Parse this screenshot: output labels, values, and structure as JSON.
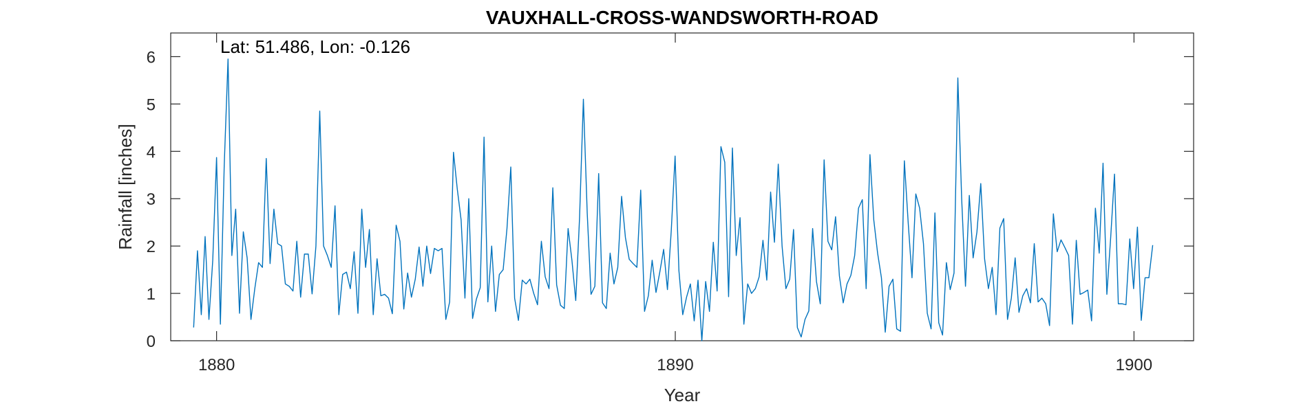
{
  "chart_data": {
    "type": "line",
    "title": "VAUXHALL-CROSS-WANDSWORTH-ROAD",
    "annotation": "Lat: 51.486, Lon: -0.126",
    "xlabel": "Year",
    "ylabel": "Rainfall [inches]",
    "xlim": [
      1879,
      1901.3
    ],
    "ylim": [
      0,
      6.5
    ],
    "xticks": [
      1880,
      1890,
      1900
    ],
    "yticks": [
      0,
      1,
      2,
      3,
      4,
      5,
      6
    ],
    "grid": false,
    "line_color": "#0072BD",
    "series": [
      {
        "x_start": 1879.5,
        "x_step": 0.0833,
        "values": [
          0.28,
          1.9,
          0.55,
          2.2,
          0.45,
          1.7,
          3.87,
          0.35,
          3.7,
          5.95,
          1.8,
          2.78,
          0.58,
          2.3,
          1.75,
          0.45,
          1.1,
          1.65,
          1.55,
          3.85,
          1.63,
          2.78,
          2.05,
          2.0,
          1.2,
          1.15,
          1.05,
          2.1,
          0.92,
          1.83,
          1.83,
          0.99,
          2.0,
          4.85,
          2.0,
          1.8,
          1.55,
          2.85,
          0.55,
          1.4,
          1.45,
          1.1,
          1.88,
          0.58,
          2.78,
          1.55,
          2.35,
          0.55,
          1.73,
          0.95,
          0.98,
          0.9,
          0.57,
          2.44,
          2.1,
          0.67,
          1.43,
          0.92,
          1.3,
          1.98,
          1.15,
          2.0,
          1.42,
          1.95,
          1.9,
          1.95,
          0.45,
          0.82,
          3.98,
          3.2,
          2.55,
          0.9,
          3.0,
          0.47,
          0.88,
          1.12,
          4.3,
          0.82,
          2.0,
          0.62,
          1.4,
          1.5,
          2.37,
          3.67,
          0.9,
          0.43,
          1.28,
          1.2,
          1.3,
          1.0,
          0.76,
          2.1,
          1.35,
          1.1,
          3.23,
          1.18,
          0.75,
          0.68,
          2.37,
          1.7,
          0.85,
          2.6,
          5.1,
          2.7,
          0.98,
          1.15,
          3.53,
          0.8,
          0.68,
          1.85,
          1.2,
          1.55,
          3.05,
          2.18,
          1.72,
          1.63,
          1.55,
          3.18,
          0.62,
          0.95,
          1.7,
          1.02,
          1.45,
          1.93,
          1.08,
          2.33,
          3.9,
          1.48,
          0.55,
          0.92,
          1.2,
          0.42,
          1.28,
          0.0,
          1.25,
          0.62,
          2.08,
          1.05,
          4.1,
          3.77,
          0.93,
          4.07,
          1.8,
          2.6,
          0.35,
          1.2,
          1.0,
          1.1,
          1.35,
          2.12,
          1.28,
          3.14,
          2.08,
          3.73,
          2.0,
          1.1,
          1.3,
          2.35,
          0.28,
          0.08,
          0.45,
          0.63,
          2.37,
          1.25,
          0.78,
          3.82,
          2.1,
          1.92,
          2.62,
          1.37,
          0.8,
          1.2,
          1.38,
          1.8,
          2.8,
          2.98,
          1.1,
          3.93,
          2.55,
          1.85,
          1.33,
          0.18,
          1.15,
          1.3,
          0.25,
          0.2,
          3.8,
          2.5,
          1.33,
          3.1,
          2.8,
          2.05,
          0.58,
          0.25,
          2.7,
          0.38,
          0.12,
          1.65,
          1.08,
          1.43,
          5.55,
          3.0,
          1.15,
          3.07,
          1.75,
          2.3,
          3.32,
          1.73,
          1.1,
          1.55,
          0.55,
          2.38,
          2.58,
          0.45,
          0.9,
          1.75,
          0.6,
          0.95,
          1.1,
          0.8,
          2.05,
          0.82,
          0.9,
          0.78,
          0.32,
          2.68,
          1.88,
          2.13,
          1.97,
          1.8,
          0.35,
          2.12,
          0.98,
          1.02,
          1.07,
          0.42,
          2.8,
          1.85,
          3.75,
          0.98,
          2.18,
          3.52,
          0.78,
          0.78,
          0.76,
          2.15,
          1.1,
          2.4,
          0.43,
          1.33,
          1.33,
          2.02
        ]
      }
    ]
  }
}
